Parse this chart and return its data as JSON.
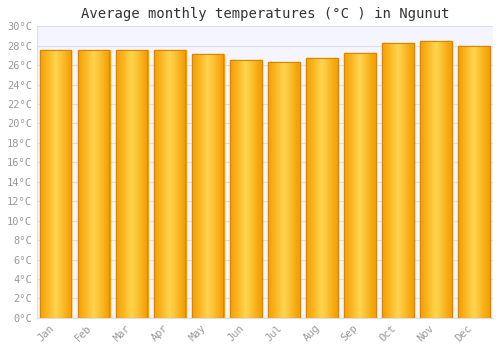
{
  "title": "Average monthly temperatures (°C ) in Ngunut",
  "months": [
    "Jan",
    "Feb",
    "Mar",
    "Apr",
    "May",
    "Jun",
    "Jul",
    "Aug",
    "Sep",
    "Oct",
    "Nov",
    "Dec"
  ],
  "values": [
    27.6,
    27.6,
    27.6,
    27.6,
    27.1,
    26.5,
    26.3,
    26.7,
    27.2,
    28.3,
    28.5,
    28.0
  ],
  "bar_color_center": "#FFD54F",
  "bar_color_edge": "#F59E00",
  "bar_border_color": "#D4870A",
  "background_color": "#FFFFFF",
  "plot_bg_color": "#F5F5FF",
  "grid_color": "#DDDDEE",
  "ylim": [
    0,
    30
  ],
  "ytick_step": 2,
  "title_fontsize": 10,
  "tick_fontsize": 7.5,
  "tick_color": "#999999",
  "title_color": "#333333",
  "font_family": "monospace"
}
